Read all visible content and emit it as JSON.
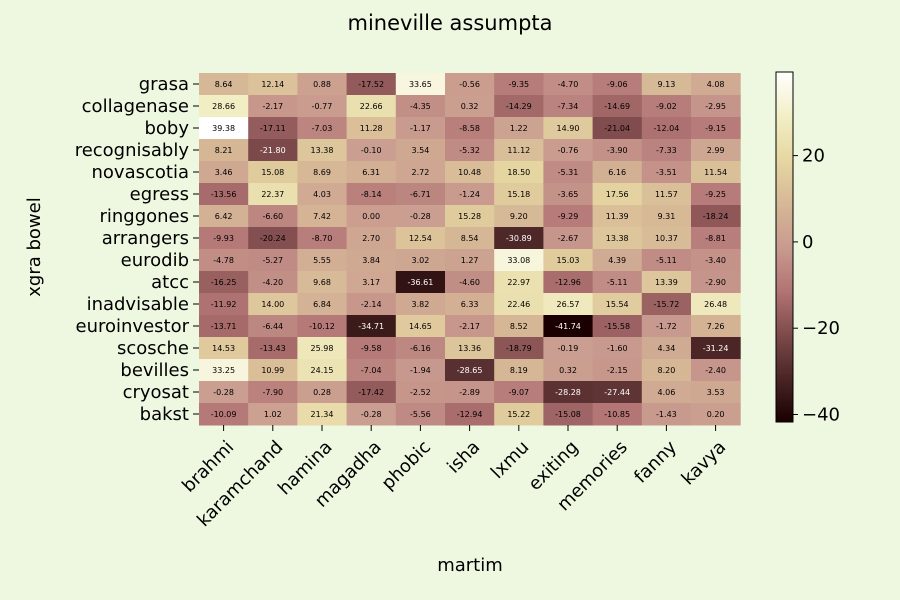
{
  "chart_data": {
    "type": "heatmap",
    "title": "mineville assumpta",
    "xlabel": "martim",
    "ylabel": "xgra bowel",
    "x_categories": [
      "brahmi",
      "karamchand",
      "hamina",
      "magadha",
      "phobic",
      "isha",
      "lxmu",
      "exiting",
      "memories",
      "fanny",
      "kavya"
    ],
    "y_categories": [
      "grasa",
      "collagenase",
      "boby",
      "recognisably",
      "novascotia",
      "egress",
      "ringgones",
      "arrangers",
      "eurodib",
      "atcc",
      "inadvisable",
      "euroinvestor",
      "scosche",
      "bevilles",
      "cryosat",
      "bakst"
    ],
    "values": [
      [
        8.64,
        12.14,
        0.88,
        -17.52,
        33.65,
        -0.56,
        -9.35,
        -4.7,
        -9.06,
        9.13,
        4.08
      ],
      [
        28.66,
        -2.17,
        -0.77,
        22.66,
        -4.35,
        0.32,
        -14.29,
        -7.34,
        -14.69,
        -9.02,
        -2.95
      ],
      [
        39.38,
        -17.11,
        -7.03,
        11.28,
        -1.17,
        -8.58,
        1.22,
        14.9,
        -21.04,
        -12.04,
        -9.15
      ],
      [
        8.21,
        -21.8,
        13.38,
        -0.1,
        3.54,
        -5.32,
        11.12,
        -0.76,
        -3.9,
        -7.33,
        2.99
      ],
      [
        3.46,
        15.08,
        8.69,
        6.31,
        2.72,
        10.48,
        18.5,
        -5.31,
        6.16,
        -3.51,
        11.54
      ],
      [
        -13.56,
        22.37,
        4.03,
        -8.14,
        -6.71,
        -1.24,
        15.18,
        -3.65,
        17.56,
        11.57,
        -9.25
      ],
      [
        6.42,
        -6.6,
        7.42,
        0.0,
        -0.28,
        15.28,
        9.2,
        -9.29,
        11.39,
        9.31,
        -18.24
      ],
      [
        -9.93,
        -20.24,
        -8.7,
        2.7,
        12.54,
        8.54,
        -30.89,
        -2.67,
        13.38,
        10.37,
        -8.81
      ],
      [
        -4.78,
        -5.27,
        5.55,
        3.84,
        3.02,
        1.27,
        33.08,
        15.03,
        4.39,
        -5.11,
        -3.4
      ],
      [
        -16.25,
        -4.2,
        9.68,
        3.17,
        -36.61,
        -4.6,
        22.97,
        -12.96,
        -5.11,
        13.39,
        -2.9
      ],
      [
        -11.92,
        14.0,
        6.84,
        -2.14,
        3.82,
        6.33,
        22.46,
        26.57,
        15.54,
        -15.72,
        26.48
      ],
      [
        -13.71,
        -6.44,
        -10.12,
        -34.71,
        14.65,
        -2.17,
        8.52,
        -41.74,
        -15.58,
        -1.72,
        7.26
      ],
      [
        14.53,
        -13.43,
        25.98,
        -9.58,
        -6.16,
        13.36,
        -18.79,
        -0.19,
        -1.6,
        4.34,
        -31.24
      ],
      [
        33.25,
        10.99,
        24.15,
        -7.04,
        -1.94,
        -28.65,
        8.19,
        0.32,
        -2.15,
        8.2,
        -2.4
      ],
      [
        -0.28,
        -7.9,
        0.28,
        -17.42,
        -2.52,
        -2.89,
        -9.07,
        -28.28,
        -27.44,
        4.06,
        3.53
      ],
      [
        -10.09,
        1.02,
        21.34,
        -0.28,
        -5.56,
        -12.94,
        15.22,
        -15.08,
        -10.85,
        -1.43,
        0.2
      ]
    ],
    "colorbar": {
      "range": [
        -41.74,
        39.38
      ],
      "ticks": [
        20,
        0,
        -20,
        -40
      ],
      "tick_labels": [
        "20",
        "0",
        "−20",
        "−40"
      ]
    },
    "colormap_stops": [
      "#1a0000",
      "#4a2526",
      "#7e4a4b",
      "#b27474",
      "#c99b8f",
      "#d6b896",
      "#e6d7a2",
      "#f2efc6",
      "#ffffff"
    ]
  }
}
